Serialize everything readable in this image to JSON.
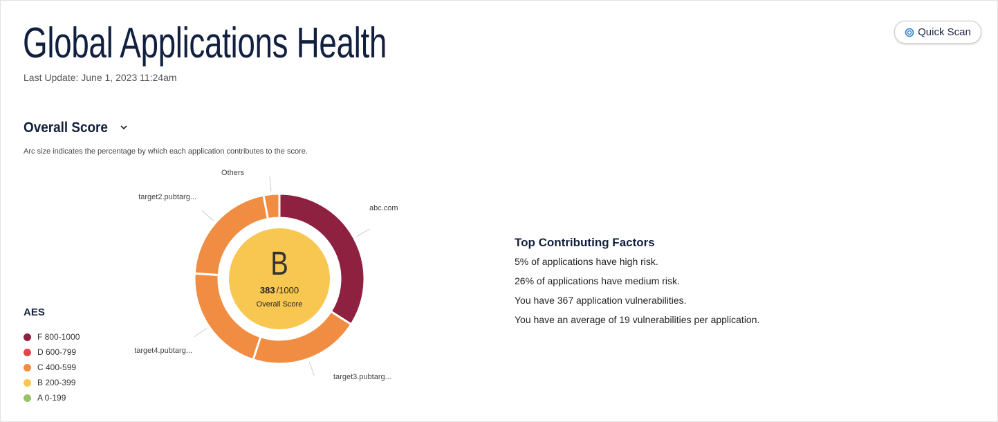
{
  "header": {
    "title": "Global Applications Health",
    "last_update": "Last Update: June 1, 2023 11:24am",
    "button": "Quick Scan"
  },
  "section": {
    "title": "Overall Score"
  },
  "chart_data": {
    "type": "donut",
    "subtitle": "Arc size indicates the percentage by which each application contributes to the score.",
    "categories": [
      "abc.com",
      "target3.pubtarg...",
      "target4.pubtarg...",
      "target2.pubtarg...",
      "Others"
    ],
    "values": [
      34,
      21,
      21,
      21,
      3
    ],
    "colors": [
      "#8e2040",
      "#f08d42",
      "#f08d42",
      "#f08d42",
      "#f08d42"
    ],
    "center": {
      "grade": "B",
      "score": 383,
      "score_suffix": "/1000",
      "label": "Overall Score",
      "color": "#f8c752"
    }
  },
  "legend": {
    "title": "AES",
    "items": [
      {
        "label": "F 800-1000",
        "color": "#8e2040"
      },
      {
        "label": "D 600-799",
        "color": "#e04848"
      },
      {
        "label": "C 400-599",
        "color": "#f08d42"
      },
      {
        "label": "B 200-399",
        "color": "#f8c752"
      },
      {
        "label": "A 0-199",
        "color": "#96c36a"
      }
    ]
  },
  "factors": {
    "title": "Top Contributing Factors",
    "items": [
      "5% of applications have high risk.",
      "26% of applications have medium risk.",
      "You have 367 application vulnerabilities.",
      "You have an average of 19 vulnerabilities per application."
    ]
  }
}
